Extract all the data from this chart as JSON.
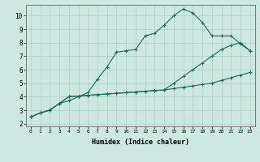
{
  "title": "",
  "xlabel": "Humidex (Indice chaleur)",
  "xlim": [
    -0.5,
    23.5
  ],
  "ylim": [
    1.8,
    10.8
  ],
  "xticks": [
    0,
    1,
    2,
    3,
    4,
    5,
    6,
    7,
    8,
    9,
    10,
    11,
    12,
    13,
    14,
    15,
    16,
    17,
    18,
    19,
    20,
    21,
    22,
    23
  ],
  "yticks": [
    2,
    3,
    4,
    5,
    6,
    7,
    8,
    9,
    10
  ],
  "background_color": "#cce8e0",
  "grid_color": "#aacfc8",
  "line_color": "#1a6b5a",
  "series1_x": [
    0,
    1,
    2,
    3,
    4,
    5,
    6,
    7,
    8,
    9,
    10,
    11,
    12,
    13,
    14,
    15,
    16,
    17,
    18,
    19,
    20,
    21,
    22,
    23
  ],
  "series1_y": [
    2.5,
    2.8,
    3.0,
    3.5,
    4.0,
    4.05,
    4.1,
    4.15,
    4.2,
    4.25,
    4.3,
    4.35,
    4.4,
    4.45,
    4.5,
    4.6,
    4.7,
    4.8,
    4.9,
    5.0,
    5.2,
    5.4,
    5.6,
    5.8
  ],
  "series2_x": [
    0,
    1,
    2,
    3,
    4,
    5,
    6,
    7,
    8,
    9,
    10,
    11,
    12,
    13,
    14,
    15,
    16,
    17,
    18,
    19,
    20,
    21,
    22,
    23
  ],
  "series2_y": [
    2.5,
    2.8,
    3.0,
    3.5,
    4.0,
    4.05,
    4.1,
    4.15,
    4.2,
    4.25,
    4.3,
    4.35,
    4.4,
    4.45,
    4.5,
    5.0,
    5.5,
    6.0,
    6.5,
    7.0,
    7.5,
    7.8,
    8.0,
    7.4
  ],
  "series3_x": [
    0,
    1,
    2,
    3,
    4,
    5,
    6,
    7,
    8,
    9,
    10,
    11,
    12,
    13,
    14,
    15,
    16,
    17,
    18,
    19,
    20,
    21,
    22,
    23
  ],
  "series3_y": [
    2.5,
    2.8,
    3.0,
    3.5,
    3.7,
    4.0,
    4.3,
    5.3,
    6.2,
    7.3,
    7.4,
    7.5,
    8.5,
    8.7,
    9.3,
    10.0,
    10.5,
    10.2,
    9.5,
    8.5,
    8.5,
    8.5,
    7.9,
    7.4
  ]
}
